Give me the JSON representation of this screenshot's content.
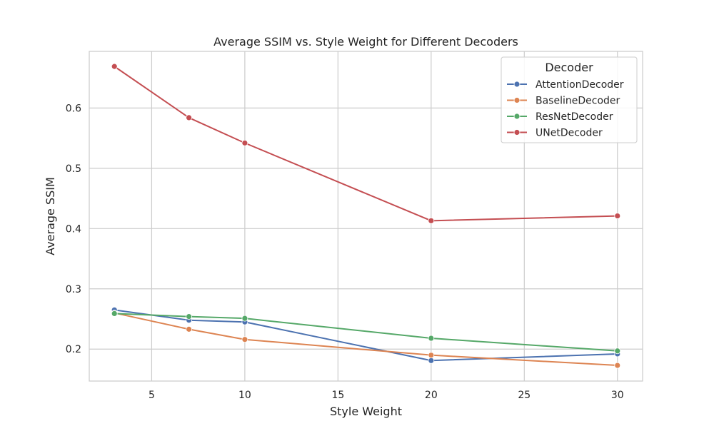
{
  "chart_data": {
    "type": "line",
    "title": "Average SSIM vs. Style Weight for Different Decoders",
    "xlabel": "Style Weight",
    "ylabel": "Average SSIM",
    "xlim": [
      1.65,
      31.35
    ],
    "ylim": [
      0.147,
      0.694
    ],
    "xticks": [
      5,
      10,
      15,
      20,
      25,
      30
    ],
    "yticks": [
      0.2,
      0.3,
      0.4,
      0.5,
      0.6
    ],
    "x": [
      3,
      7,
      10,
      20,
      30
    ],
    "grid": true,
    "legend": {
      "title": "Decoder",
      "placement": "top-right"
    },
    "series": [
      {
        "name": "AttentionDecoder",
        "color": "#4c72b0",
        "values": [
          0.265,
          0.248,
          0.245,
          0.181,
          0.192
        ]
      },
      {
        "name": "BaselineDecoder",
        "color": "#dd8452",
        "values": [
          0.26,
          0.233,
          0.216,
          0.19,
          0.173
        ]
      },
      {
        "name": "ResNetDecoder",
        "color": "#55a868",
        "values": [
          0.259,
          0.254,
          0.251,
          0.218,
          0.197
        ]
      },
      {
        "name": "UNetDecoder",
        "color": "#c44e52",
        "values": [
          0.669,
          0.584,
          0.542,
          0.413,
          0.421
        ]
      }
    ]
  }
}
